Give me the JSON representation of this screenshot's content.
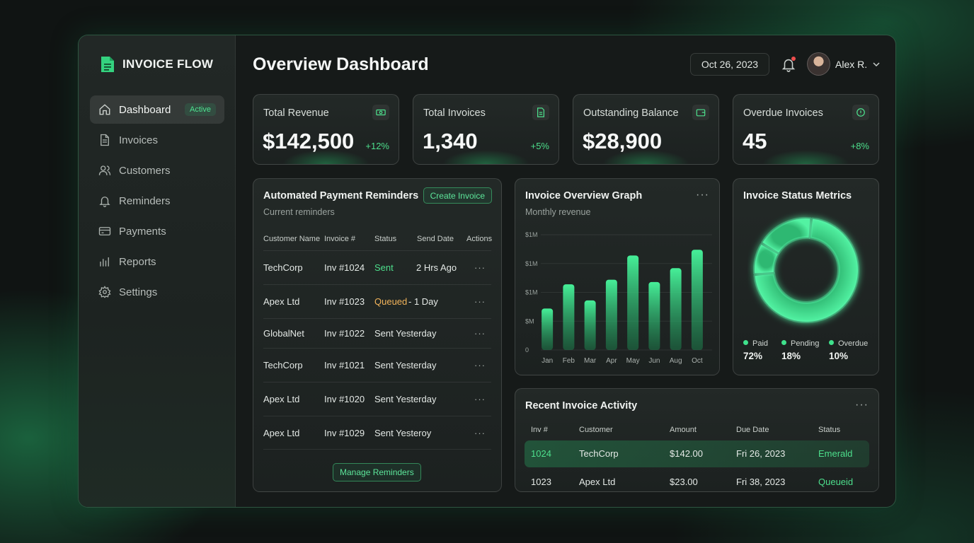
{
  "brand": {
    "name": "INVOICE FLOW"
  },
  "sidebar": {
    "items": [
      {
        "label": "Dashboard",
        "badge": "Active"
      },
      {
        "label": "Invoices"
      },
      {
        "label": "Customers"
      },
      {
        "label": "Reminders"
      },
      {
        "label": "Payments"
      },
      {
        "label": "Reports"
      },
      {
        "label": "Settings"
      }
    ]
  },
  "header": {
    "title": "Overview Dashboard",
    "date": "Oct 26, 2023",
    "user": "Alex R."
  },
  "stats": [
    {
      "label": "Total Revenue",
      "value": "$142,500",
      "change": "+12%",
      "icon": "banknote-icon"
    },
    {
      "label": "Total Invoices",
      "value": "1,340",
      "change": "+5%",
      "icon": "document-icon"
    },
    {
      "label": "Outstanding Balance",
      "value": "$28,900",
      "change": "",
      "icon": "wallet-icon"
    },
    {
      "label": "Overdue Invoices",
      "value": "45",
      "change": "+8%",
      "icon": "alert-icon"
    }
  ],
  "reminders": {
    "title": "Automated Payment Reminders",
    "subtitle": "Current reminders",
    "create_button": "Create Invoice",
    "columns": [
      "Customer Name",
      "Invoice #",
      "Status",
      "Send Date",
      "Actions"
    ],
    "rows": [
      {
        "customer": "TechCorp",
        "invoice": "Inv #1024",
        "status": "Sent",
        "status_type": "sent",
        "date": "2 Hrs Ago"
      },
      {
        "customer": "Apex Ltd",
        "invoice": "Inv #1023",
        "status": "Queued",
        "status_type": "queued",
        "date": "- 1 Day"
      },
      {
        "customer": "GlobalNet",
        "invoice": "Inv #1022",
        "status": "Sent Yesterday",
        "status_type": "plain",
        "date": ""
      },
      {
        "customer": "TechCorp",
        "invoice": "Inv #1021",
        "status": "Sent Yesterday",
        "status_type": "plain",
        "date": ""
      },
      {
        "customer": "Apex Ltd",
        "invoice": "Inv #1020",
        "status": "Sent Yesterday",
        "status_type": "plain",
        "date": ""
      },
      {
        "customer": "Apex Ltd",
        "invoice": "Inv #1029",
        "status": "Sent Yesteroy",
        "status_type": "plain",
        "date": ""
      }
    ],
    "manage_button": "Manage Reminders",
    "row_action": "···"
  },
  "graph": {
    "title": "Invoice Overview Graph",
    "subtitle": "Monthly revenue",
    "menu": "···"
  },
  "chart_data": {
    "type": "bar",
    "categories": [
      "Jan",
      "Feb",
      "Mar",
      "Apr",
      "May",
      "Jun",
      "Aug",
      "Oct"
    ],
    "values": [
      0.36,
      0.57,
      0.43,
      0.61,
      0.82,
      0.59,
      0.71,
      0.87
    ],
    "ytick_labels": [
      "0",
      "$M",
      "$1M",
      "$1M",
      "$1M"
    ],
    "ylim": [
      0,
      1
    ],
    "grid": true,
    "color": "#3fe28c"
  },
  "status_metrics": {
    "title": "Invoice Status Metrics",
    "items": [
      {
        "label": "Paid",
        "value": "72%",
        "fraction": 0.72
      },
      {
        "label": "Pending",
        "value": "18%",
        "fraction": 0.18
      },
      {
        "label": "Overdue",
        "value": "10%",
        "fraction": 0.1
      }
    ],
    "color": "#3fe28c"
  },
  "activity": {
    "title": "Recent Invoice Activity",
    "menu": "···",
    "columns": [
      "Inv #",
      "Customer",
      "Amount",
      "Due Date",
      "Status"
    ],
    "rows": [
      {
        "inv": "1024",
        "customer": "TechCorp",
        "amount": "$142.00",
        "due": "Fri 26, 2023",
        "status": "Emerald"
      },
      {
        "inv": "1023",
        "customer": "Apex Ltd",
        "amount": "$23.00",
        "due": "Fri 38, 2023",
        "status": "Queueid"
      }
    ]
  }
}
